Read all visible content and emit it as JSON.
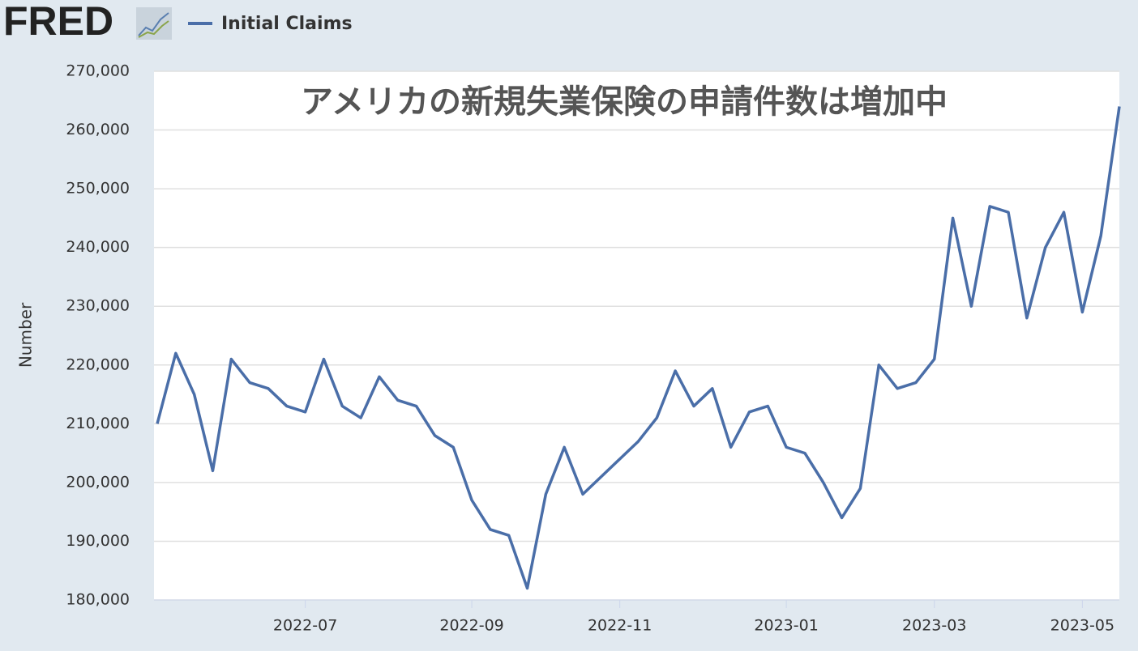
{
  "logo": "FRED",
  "chart_data": {
    "type": "line",
    "title": "アメリカの新規失業保険の申請件数は増加中",
    "y_label": "Number",
    "categories": [
      null,
      null,
      null,
      null,
      null,
      null,
      null,
      null,
      "2022-07",
      null,
      null,
      null,
      null,
      null,
      null,
      null,
      null,
      "2022-09",
      null,
      null,
      null,
      null,
      null,
      null,
      null,
      "2022-11",
      null,
      null,
      null,
      null,
      null,
      null,
      null,
      null,
      "2023-01",
      null,
      null,
      null,
      null,
      null,
      null,
      null,
      "2023-03",
      null,
      null,
      null,
      null,
      null,
      null,
      null,
      "2023-05",
      null,
      null
    ],
    "series": [
      {
        "name": "Initial Claims",
        "color": "#4a6ea8",
        "values": [
          210000,
          222000,
          215000,
          202000,
          221000,
          217000,
          216000,
          213000,
          212000,
          221000,
          213000,
          211000,
          218000,
          214000,
          213000,
          208000,
          206000,
          197000,
          192000,
          191000,
          182000,
          198000,
          206000,
          198000,
          201000,
          204000,
          207000,
          211000,
          219000,
          213000,
          216000,
          206000,
          212000,
          213000,
          206000,
          205000,
          200000,
          194000,
          199000,
          220000,
          216000,
          217000,
          221000,
          245000,
          230000,
          247000,
          246000,
          228000,
          240000,
          246000,
          229000,
          242000,
          264000
        ]
      }
    ],
    "ylim": [
      180000,
      270000
    ],
    "yticks": [
      {
        "value": 180000,
        "label": "180,000"
      },
      {
        "value": 190000,
        "label": "190,000"
      },
      {
        "value": 200000,
        "label": "200,000"
      },
      {
        "value": 210000,
        "label": "210,000"
      },
      {
        "value": 220000,
        "label": "220,000"
      },
      {
        "value": 230000,
        "label": "230,000"
      },
      {
        "value": 240000,
        "label": "240,000"
      },
      {
        "value": 250000,
        "label": "250,000"
      },
      {
        "value": 260000,
        "label": "260,000"
      },
      {
        "value": 270000,
        "label": "270,000"
      }
    ],
    "grid": true
  }
}
